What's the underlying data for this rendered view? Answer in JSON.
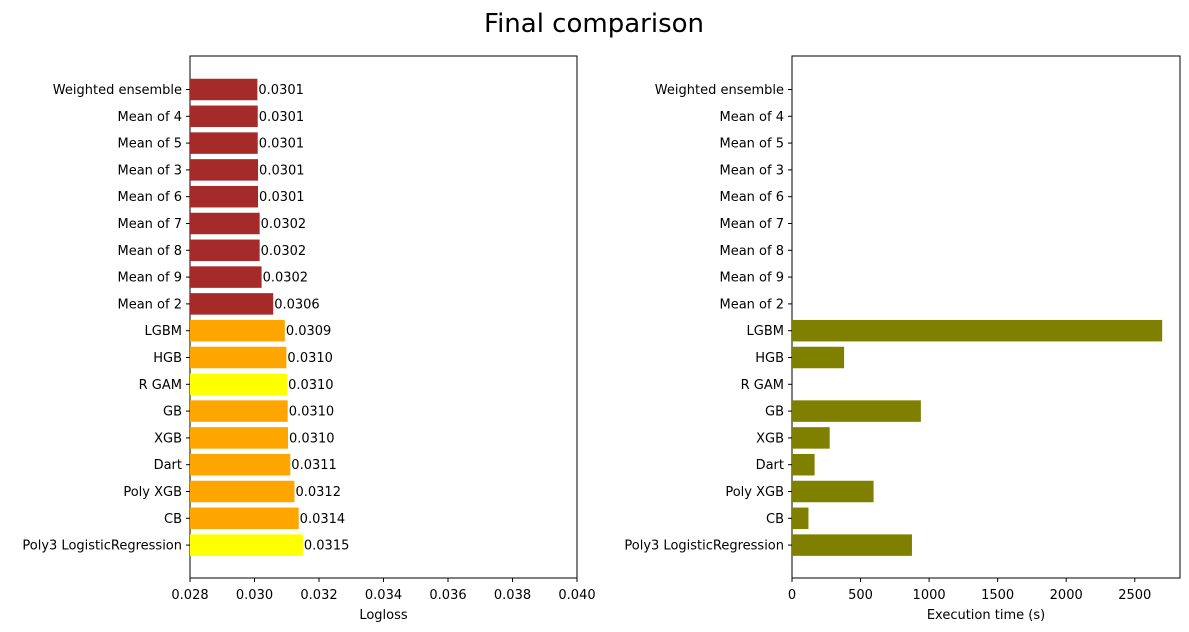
{
  "figure_title": "Final comparison",
  "colors": {
    "ensemble": "#a52a2a",
    "gbm": "#ffa500",
    "gam_lr": "#ffff00",
    "time": "#808000"
  },
  "chart_data": [
    {
      "type": "bar",
      "orientation": "horizontal",
      "title": "",
      "xlabel": "Logloss",
      "ylabel": "",
      "xlim": [
        0.028,
        0.04
      ],
      "xticks": [
        "0.028",
        "0.030",
        "0.032",
        "0.034",
        "0.036",
        "0.038",
        "0.040"
      ],
      "categories": [
        "Weighted ensemble",
        "Mean of 4",
        "Mean of 5",
        "Mean of 3",
        "Mean of 6",
        "Mean of 7",
        "Mean of 8",
        "Mean of 9",
        "Mean of 2",
        "LGBM",
        "HGB",
        "R GAM",
        "GB",
        "XGB",
        "Dart",
        "Poly XGB",
        "CB",
        "Poly3 LogisticRegression"
      ],
      "values": [
        0.03009,
        0.0301,
        0.0301,
        0.03011,
        0.03011,
        0.03016,
        0.03016,
        0.03022,
        0.03058,
        0.03094,
        0.03099,
        0.03101,
        0.03103,
        0.03104,
        0.03111,
        0.03124,
        0.03137,
        0.0315
      ],
      "data_labels": [
        "0.0301",
        "0.0301",
        "0.0301",
        "0.0301",
        "0.0301",
        "0.0302",
        "0.0302",
        "0.0302",
        "0.0306",
        "0.0309",
        "0.0310",
        "0.0310",
        "0.0310",
        "0.0310",
        "0.0311",
        "0.0312",
        "0.0314",
        "0.0315"
      ],
      "bar_colors": [
        "#a52a2a",
        "#a52a2a",
        "#a52a2a",
        "#a52a2a",
        "#a52a2a",
        "#a52a2a",
        "#a52a2a",
        "#a52a2a",
        "#a52a2a",
        "#ffa500",
        "#ffa500",
        "#ffff00",
        "#ffa500",
        "#ffa500",
        "#ffa500",
        "#ffa500",
        "#ffa500",
        "#ffff00"
      ],
      "grid": false
    },
    {
      "type": "bar",
      "orientation": "horizontal",
      "title": "",
      "xlabel": "Execution time (s)",
      "ylabel": "",
      "xlim": [
        0,
        2830
      ],
      "xticks": [
        "0",
        "500",
        "1000",
        "1500",
        "2000",
        "2500"
      ],
      "categories": [
        "Weighted ensemble",
        "Mean of 4",
        "Mean of 5",
        "Mean of 3",
        "Mean of 6",
        "Mean of 7",
        "Mean of 8",
        "Mean of 9",
        "Mean of 2",
        "LGBM",
        "HGB",
        "R GAM",
        "GB",
        "XGB",
        "Dart",
        "Poly XGB",
        "CB",
        "Poly3 LogisticRegression"
      ],
      "values": [
        0,
        0,
        0,
        0,
        0,
        0,
        0,
        0,
        0,
        2700,
        380,
        0,
        940,
        275,
        165,
        595,
        120,
        875
      ],
      "bar_color": "#808000",
      "grid": false
    }
  ]
}
